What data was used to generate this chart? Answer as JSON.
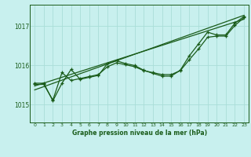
{
  "title": "Graphe pression niveau de la mer (hPa)",
  "background_color": "#c8f0ee",
  "grid_color": "#aaddd8",
  "line_color": "#1a5c1a",
  "text_color": "#1a5c1a",
  "xlim": [
    -0.5,
    23.5
  ],
  "ylim": [
    1014.55,
    1017.55
  ],
  "yticks": [
    1015,
    1016,
    1017
  ],
  "xticks": [
    0,
    1,
    2,
    3,
    4,
    5,
    6,
    7,
    8,
    9,
    10,
    11,
    12,
    13,
    14,
    15,
    16,
    17,
    18,
    19,
    20,
    21,
    22,
    23
  ],
  "main_data": {
    "x": [
      0,
      1,
      2,
      3,
      4,
      5,
      6,
      7,
      8,
      9,
      10,
      11,
      12,
      13,
      14,
      15,
      16,
      17,
      18,
      19,
      20,
      21,
      22,
      23
    ],
    "y": [
      1015.55,
      1015.55,
      1015.1,
      1015.55,
      1015.9,
      1015.65,
      1015.7,
      1015.75,
      1016.05,
      1016.12,
      1016.05,
      1016.0,
      1015.88,
      1015.8,
      1015.73,
      1015.73,
      1015.88,
      1016.25,
      1016.55,
      1016.85,
      1016.78,
      1016.78,
      1017.08,
      1017.25
    ]
  },
  "line2_data": {
    "x": [
      0,
      1,
      2,
      3,
      4,
      5,
      6,
      7,
      8,
      9,
      10,
      11,
      12,
      13,
      14,
      15,
      16,
      17,
      18,
      19,
      20,
      21,
      22,
      23
    ],
    "y": [
      1015.52,
      1015.52,
      1015.12,
      1015.82,
      1015.62,
      1015.67,
      1015.72,
      1015.77,
      1015.97,
      1016.07,
      1016.02,
      1015.97,
      1015.87,
      1015.82,
      1015.77,
      1015.77,
      1015.87,
      1016.15,
      1016.42,
      1016.72,
      1016.75,
      1016.75,
      1017.02,
      1017.22
    ]
  },
  "trend1": {
    "x": [
      0,
      23
    ],
    "y": [
      1015.48,
      1017.18
    ]
  },
  "trend2": {
    "x": [
      0,
      23
    ],
    "y": [
      1015.38,
      1017.28
    ]
  }
}
